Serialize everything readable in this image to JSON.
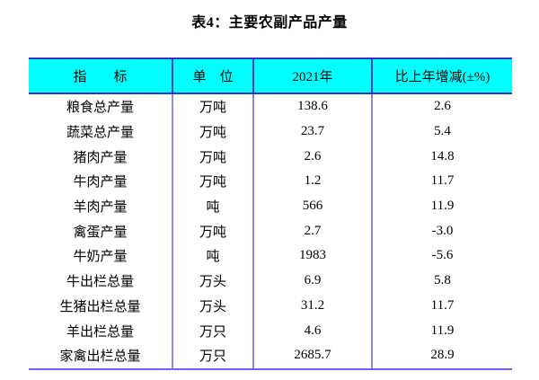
{
  "page": {
    "title": "表4：主要农副产品产量"
  },
  "table": {
    "header": {
      "indicator": "指　　标",
      "unit": "单　位",
      "year": "2021年",
      "change": "比上年增减(±%)"
    },
    "rows": [
      {
        "indicator": "粮食总产量",
        "unit": "万吨",
        "value": "138.6",
        "change": "2.6"
      },
      {
        "indicator": "蔬菜总产量",
        "unit": "万吨",
        "value": "23.7",
        "change": "5.4"
      },
      {
        "indicator": "猪肉产量",
        "unit": "万吨",
        "value": "2.6",
        "change": "14.8"
      },
      {
        "indicator": "牛肉产量",
        "unit": "万吨",
        "value": "1.2",
        "change": "11.7"
      },
      {
        "indicator": "羊肉产量",
        "unit": "吨",
        "value": "566",
        "change": "11.9"
      },
      {
        "indicator": "禽蛋产量",
        "unit": "万吨",
        "value": "2.7",
        "change": "-3.0"
      },
      {
        "indicator": "牛奶产量",
        "unit": "吨",
        "value": "1983",
        "change": "-5.6"
      },
      {
        "indicator": "牛出栏总量",
        "unit": "万头",
        "value": "6.9",
        "change": "5.8"
      },
      {
        "indicator": "生猪出栏总量",
        "unit": "万头",
        "value": "31.2",
        "change": "11.7"
      },
      {
        "indicator": "羊出栏总量",
        "unit": "万只",
        "value": "4.6",
        "change": "11.9"
      },
      {
        "indicator": "家禽出栏总量",
        "unit": "万只",
        "value": "2685.7",
        "change": "28.9"
      }
    ],
    "colors": {
      "header_background": "#00ffff",
      "header_border": "#3233cb",
      "body_divider": "#8a8aea",
      "bottom_border": "#6868e2",
      "text": "#000000"
    }
  }
}
